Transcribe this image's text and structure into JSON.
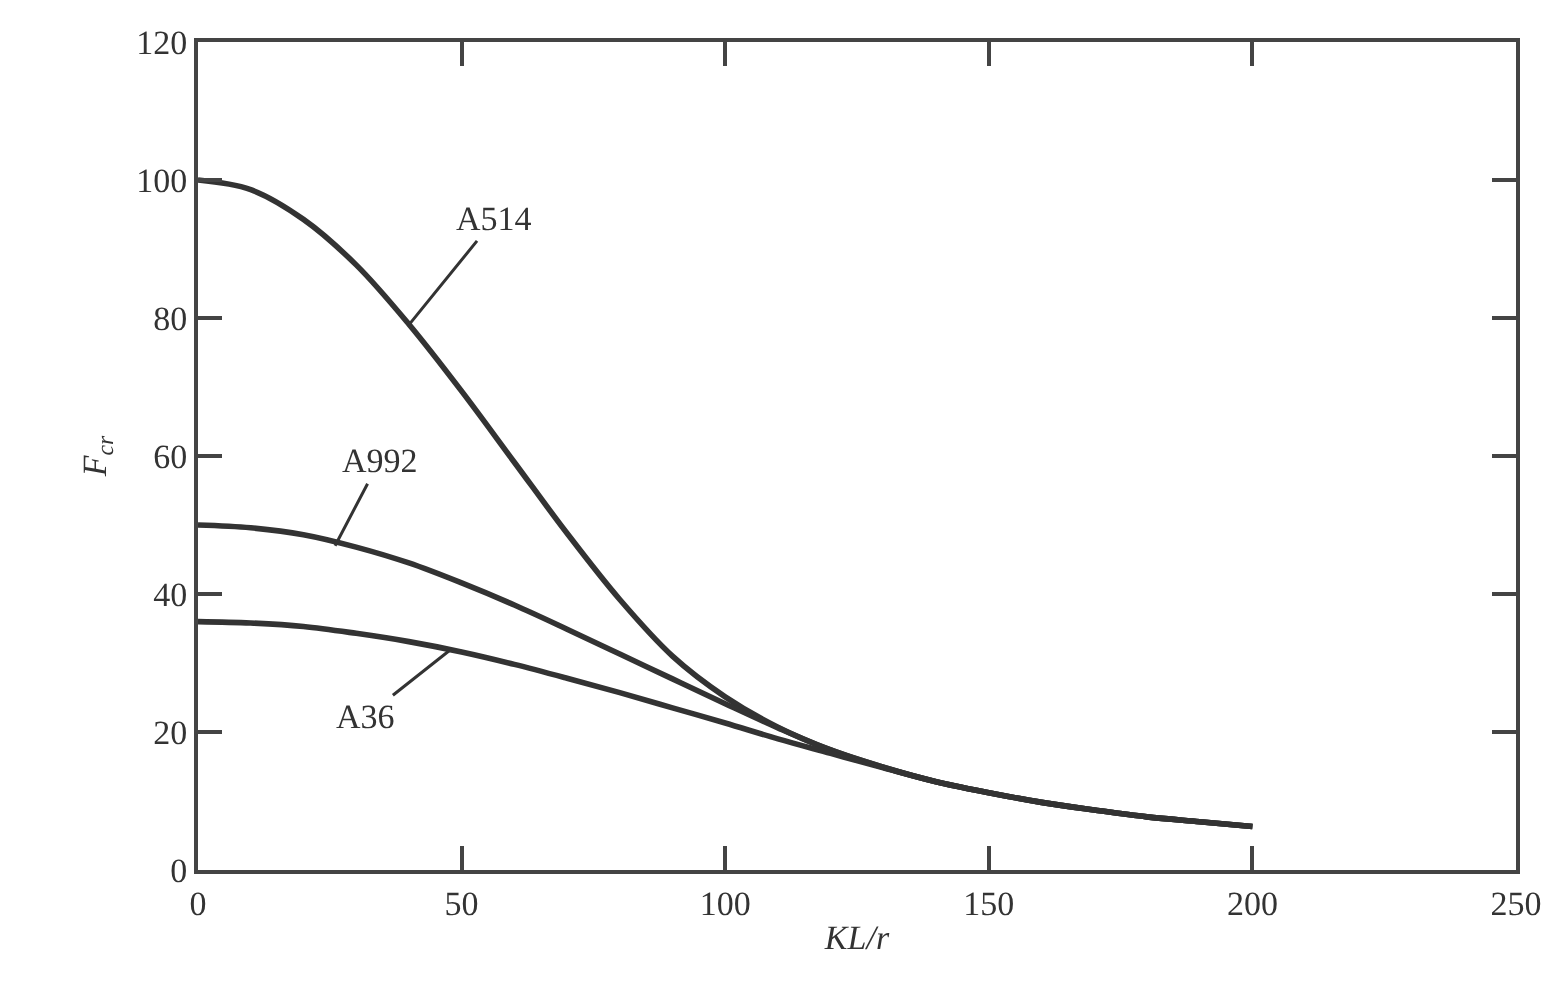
{
  "chart_data": {
    "type": "line",
    "xlabel": "KL/r",
    "ylabel": "F$_{cr}$",
    "x": [
      0,
      10,
      20,
      30,
      40,
      50,
      60,
      70,
      80,
      90,
      100,
      110,
      120,
      130,
      140,
      150,
      160,
      170,
      180,
      190,
      200
    ],
    "series": [
      {
        "color": "#333333",
        "values": [
          100,
          98.6,
          94.3,
          87.7,
          79.1,
          69.4,
          59.1,
          48.8,
          39.2,
          31.0,
          25.1,
          20.7,
          17.4,
          14.9,
          12.8,
          11.2,
          9.8,
          8.7,
          7.7,
          7.0,
          6.3
        ]
      },
      {
        "color": "#333333",
        "values": [
          50,
          49.6,
          48.6,
          46.8,
          44.5,
          41.6,
          38.4,
          34.9,
          31.3,
          27.7,
          24.1,
          20.6,
          17.4,
          14.9,
          12.8,
          11.2,
          9.8,
          8.7,
          7.7,
          7.0,
          6.3
        ]
      },
      {
        "color": "#333333",
        "values": [
          36,
          35.8,
          35.3,
          34.3,
          33.1,
          31.6,
          29.8,
          27.8,
          25.7,
          23.5,
          21.3,
          19.0,
          16.9,
          14.8,
          12.8,
          11.2,
          9.8,
          8.7,
          7.7,
          7.0,
          6.3
        ]
      }
    ],
    "annotations": [
      {
        "text": "A514",
        "x": 40,
        "y": 79
      },
      {
        "text": "A992",
        "x": 26,
        "y": 47
      },
      {
        "text": "A36",
        "x": 48,
        "y": 32
      }
    ],
    "xlim": [
      0,
      250
    ],
    "xticks": [
      0,
      50,
      100,
      150,
      200,
      250
    ],
    "ylim": [
      0,
      120
    ],
    "yticks": [
      0,
      20,
      40,
      60,
      80,
      100,
      120
    ],
    "marker": "none",
    "line_style": "solid"
  }
}
